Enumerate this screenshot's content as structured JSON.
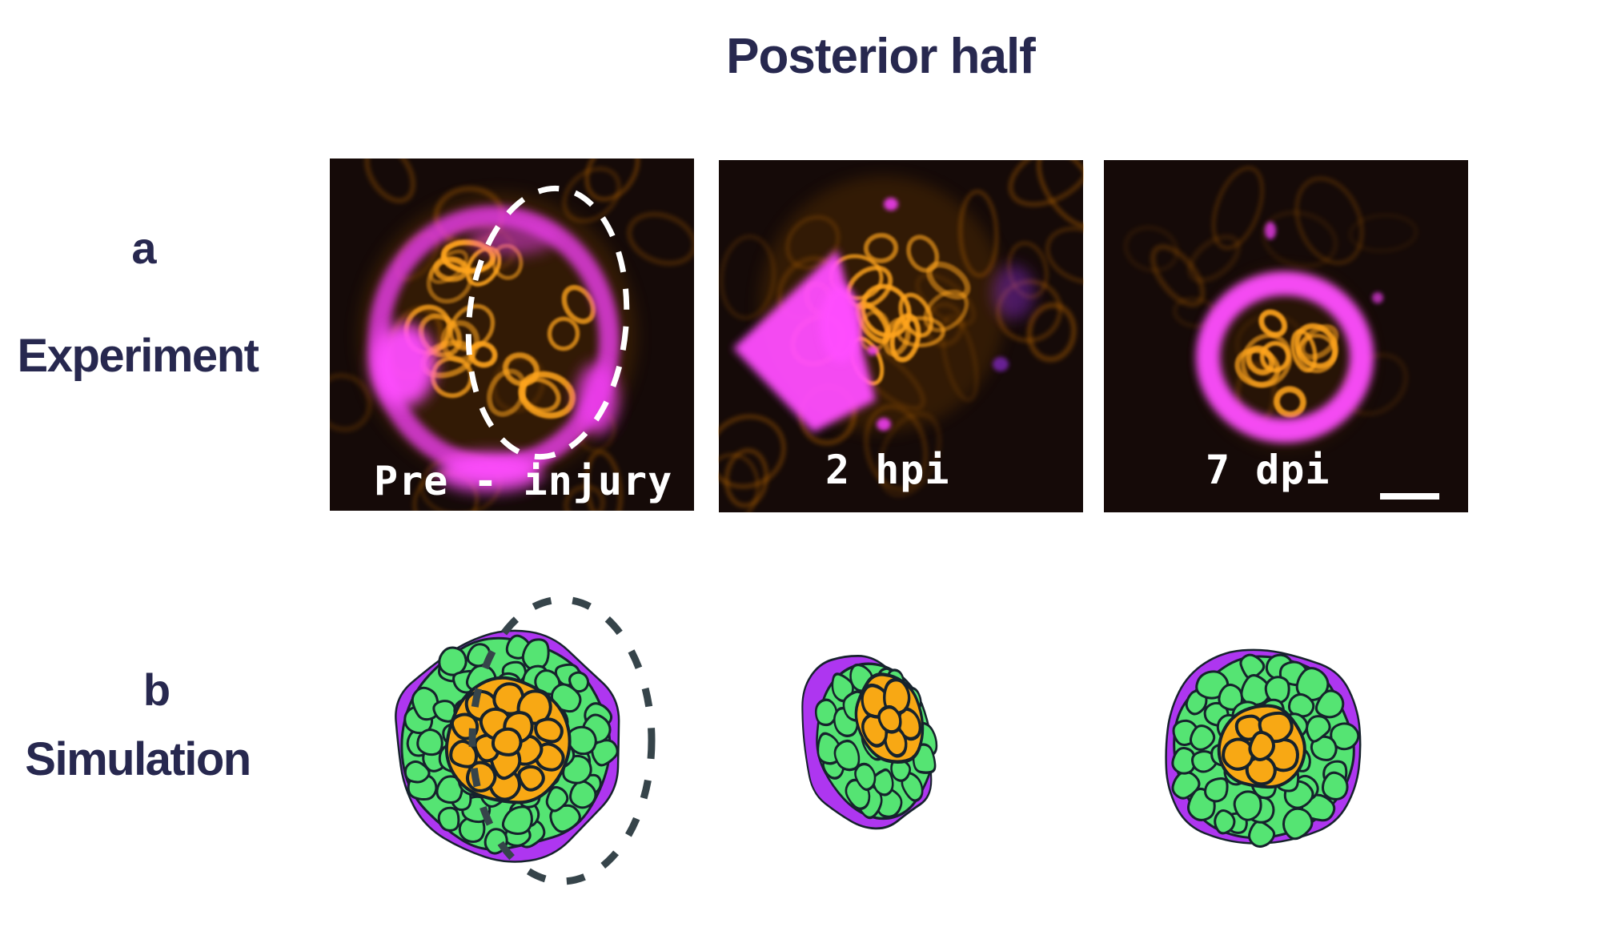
{
  "title": "Posterior half",
  "experiment": {
    "letter": "a",
    "label": "Experiment",
    "panels": [
      {
        "name": "pre-injury",
        "caption": "Pre - injury",
        "has_dashed_outline": true
      },
      {
        "name": "2-hpi",
        "caption": "2 hpi"
      },
      {
        "name": "7-dpi",
        "caption": "7 dpi",
        "has_scale_bar": true
      }
    ]
  },
  "simulation": {
    "letter": "b",
    "label": "Simulation",
    "panels": [
      {
        "name": "pre-injury-sim",
        "has_dashed_outline": true
      },
      {
        "name": "2-hpi-sim"
      },
      {
        "name": "7-dpi-sim"
      }
    ]
  },
  "colors": {
    "text_navy": "#27284f",
    "panel_bg": "#150a08",
    "micro_orange_dim": "#c86e00",
    "micro_orange": "#ffa41e",
    "micro_magenta": "#ee3cee",
    "micro_magenta_bright": "#ff4dff",
    "micro_violet": "#8b2bd0",
    "caption_white": "#ffffff",
    "sim_green": "#55e473",
    "sim_purple": "#ae36f0",
    "sim_orange": "#f8a814",
    "cell_border": "#16222c",
    "dash_dark": "#36444a"
  }
}
